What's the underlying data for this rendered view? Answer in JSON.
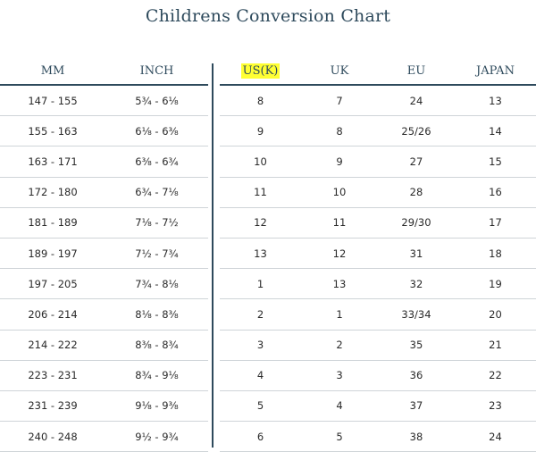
{
  "title": "Childrens Conversion Chart",
  "left_headers": [
    "MM",
    "INCH"
  ],
  "right_headers": [
    "US(K)",
    "UK",
    "EU",
    "JAPAN"
  ],
  "highlight_color": "#ffff33",
  "rows": [
    {
      "mm": "147  -  155",
      "inch": "5¾ - 6⅛",
      "us": "8",
      "uk": "7",
      "eu": "24",
      "japan": "13"
    },
    {
      "mm": "155  -  163",
      "inch": "6⅛ - 6⅜",
      "us": "9",
      "uk": "8",
      "eu": "25/26",
      "japan": "14"
    },
    {
      "mm": "163  -  171",
      "inch": "6⅜ - 6¾",
      "us": "10",
      "uk": "9",
      "eu": "27",
      "japan": "15"
    },
    {
      "mm": "172  -  180",
      "inch": "6¾ - 7⅛",
      "us": "11",
      "uk": "10",
      "eu": "28",
      "japan": "16"
    },
    {
      "mm": "181  -  189",
      "inch": "7⅛ - 7½",
      "us": "12",
      "uk": "11",
      "eu": "29/30",
      "japan": "17"
    },
    {
      "mm": "189  -  197",
      "inch": "7½ - 7¾",
      "us": "13",
      "uk": "12",
      "eu": "31",
      "japan": "18"
    },
    {
      "mm": "197  -  205",
      "inch": "7¾ - 8⅛",
      "us": "1",
      "uk": "13",
      "eu": "32",
      "japan": "19"
    },
    {
      "mm": "206  -  214",
      "inch": "8⅛ - 8⅜",
      "us": "2",
      "uk": "1",
      "eu": "33/34",
      "japan": "20"
    },
    {
      "mm": "214  -  222",
      "inch": "8⅜ - 8¾",
      "us": "3",
      "uk": "2",
      "eu": "35",
      "japan": "21"
    },
    {
      "mm": "223  -  231",
      "inch": "8¾ - 9⅛",
      "us": "4",
      "uk": "3",
      "eu": "36",
      "japan": "22"
    },
    {
      "mm": "231  -  239",
      "inch": "9⅛ - 9⅜",
      "us": "5",
      "uk": "4",
      "eu": "37",
      "japan": "23"
    },
    {
      "mm": "240  -  248",
      "inch": "9½ - 9¾",
      "us": "6",
      "uk": "5",
      "eu": "38",
      "japan": "24"
    }
  ]
}
